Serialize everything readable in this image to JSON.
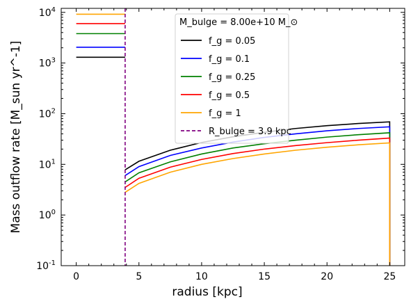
{
  "chart_data": {
    "type": "line",
    "title": "",
    "xlabel": "radius [kpc]",
    "ylabel": "Mass outflow rate [M_sun yr^-1]",
    "xlim": [
      -1.2,
      26.2
    ],
    "ylim": [
      0.1,
      12000
    ],
    "yscale": "log",
    "grid": false,
    "legend_position": "top-center",
    "legend_title": "M_bulge = 8.00e+10 M_⊙",
    "xticks": [
      0,
      5,
      10,
      15,
      20,
      25
    ],
    "xtick_labels": [
      "0",
      "5",
      "10",
      "15",
      "20",
      "25"
    ],
    "yticks": [
      0.1,
      1,
      10,
      100,
      1000,
      10000
    ],
    "ytick_labels": [
      "10^-1",
      "10^0",
      "10^1",
      "10^2",
      "10^3",
      "10^4"
    ],
    "r_bulge": 3.9,
    "r_max": 25,
    "series": [
      {
        "name": "f_g = 0.05",
        "color": "#000000",
        "inner_rate": 1300,
        "outer_x": [
          3.9,
          5,
          7.5,
          10,
          12.5,
          15,
          17.5,
          20,
          22.5,
          25
        ],
        "outer_y": [
          7.8,
          11.5,
          19,
          27,
          35,
          43,
          51,
          58,
          64,
          69
        ]
      },
      {
        "name": "f_g = 0.1",
        "color": "#0000ff",
        "inner_rate": 2050,
        "outer_x": [
          3.9,
          5,
          7.5,
          10,
          12.5,
          15,
          17.5,
          20,
          22.5,
          25
        ],
        "outer_y": [
          6.0,
          9.0,
          15,
          21,
          27.5,
          34,
          40,
          46,
          51,
          55
        ]
      },
      {
        "name": "f_g = 0.25",
        "color": "#008000",
        "inner_rate": 3800,
        "outer_x": [
          3.9,
          5,
          7.5,
          10,
          12.5,
          15,
          17.5,
          20,
          22.5,
          25
        ],
        "outer_y": [
          4.5,
          6.8,
          11.2,
          16,
          21,
          25.5,
          30,
          34.5,
          38.5,
          42
        ]
      },
      {
        "name": "f_g = 0.5",
        "color": "#ff0000",
        "inner_rate": 6000,
        "outer_x": [
          3.9,
          5,
          7.5,
          10,
          12.5,
          15,
          17.5,
          20,
          22.5,
          25
        ],
        "outer_y": [
          3.5,
          5.3,
          8.8,
          12.5,
          16.3,
          20,
          23.5,
          26.8,
          30,
          33
        ]
      },
      {
        "name": "f_g = 1",
        "color": "#ffa500",
        "inner_rate": 9200,
        "outer_x": [
          3.9,
          5,
          7.5,
          10,
          12.5,
          15,
          17.5,
          20,
          22.5,
          25
        ],
        "outer_y": [
          2.8,
          4.2,
          7.0,
          10,
          13,
          16,
          19,
          21.8,
          24.3,
          26.5
        ]
      }
    ],
    "reference_line": {
      "name": "R_bulge = 3.9 kpc",
      "x": 3.9,
      "color": "#800080",
      "style": "dashed"
    }
  }
}
